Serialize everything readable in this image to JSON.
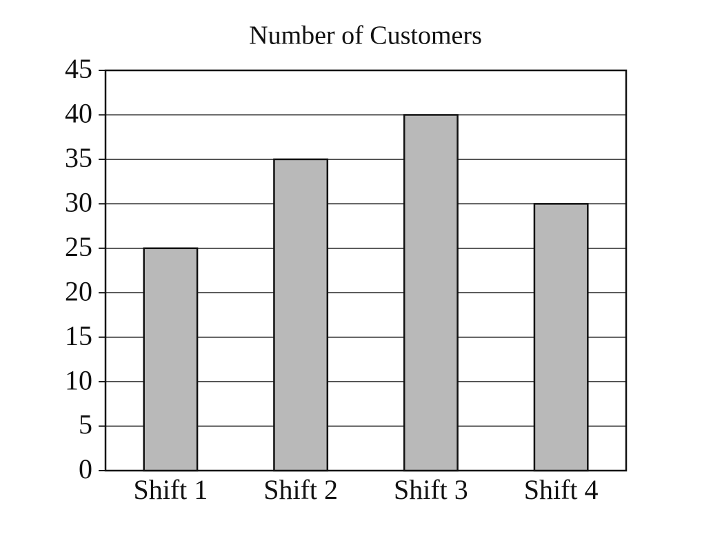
{
  "chart_data": {
    "type": "bar",
    "title": "Number of Customers",
    "categories": [
      "Shift 1",
      "Shift 2",
      "Shift 3",
      "Shift 4"
    ],
    "values": [
      25,
      35,
      40,
      30
    ],
    "color": "#b9b9b9",
    "ylim": [
      0,
      45
    ],
    "yticks": [
      0,
      5,
      10,
      15,
      20,
      25,
      30,
      35,
      40,
      45
    ],
    "grid": true
  }
}
